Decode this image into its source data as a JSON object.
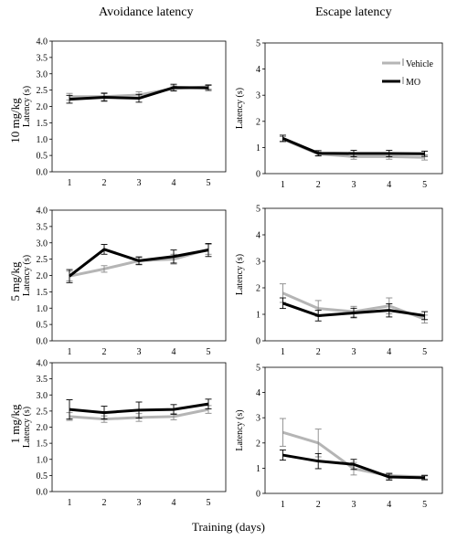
{
  "figure": {
    "col_titles": [
      "Avoidance latency",
      "Escape latency"
    ],
    "row_labels": [
      "10 mg/kg",
      "5 mg/kg",
      "1 mg/kg"
    ],
    "xlabel": "Training (days)"
  },
  "colors": {
    "vehicle": "#b5b5b5",
    "mo": "#000000"
  },
  "chart_data": [
    {
      "type": "line",
      "row": "10 mg/kg",
      "measure": "Avoidance latency",
      "xlabel": "",
      "ylabel": "Latency (s)",
      "x": [
        1,
        2,
        3,
        4,
        5
      ],
      "xlim": [
        0.5,
        5.5
      ],
      "ylim": [
        0,
        4
      ],
      "yticks": [
        0,
        0.5,
        1,
        1.5,
        2,
        2.5,
        3,
        3.5,
        4
      ],
      "ytick_decimals": 1,
      "grid": false,
      "legend": null,
      "series": [
        {
          "name": "Vehicle",
          "color": "#b5b5b5",
          "values": [
            2.3,
            2.3,
            2.35,
            2.55,
            2.6
          ],
          "errors": [
            0.1,
            0.12,
            0.1,
            0.08,
            0.07
          ]
        },
        {
          "name": "MO",
          "color": "#000000",
          "values": [
            2.22,
            2.28,
            2.25,
            2.58,
            2.57
          ],
          "errors": [
            0.12,
            0.12,
            0.12,
            0.1,
            0.08
          ]
        }
      ]
    },
    {
      "type": "line",
      "row": "10 mg/kg",
      "measure": "Escape latency",
      "xlabel": "",
      "ylabel": "Latency (s)",
      "x": [
        1,
        2,
        3,
        4,
        5
      ],
      "xlim": [
        0.5,
        5.5
      ],
      "ylim": [
        0,
        5
      ],
      "yticks": [
        0,
        1,
        2,
        3,
        4,
        5
      ],
      "ytick_decimals": 0,
      "grid": false,
      "legend": "top-right",
      "series": [
        {
          "name": "Vehicle",
          "color": "#b5b5b5",
          "values": [
            1.32,
            0.75,
            0.65,
            0.65,
            0.62
          ],
          "errors": [
            0.1,
            0.08,
            0.1,
            0.1,
            0.1
          ]
        },
        {
          "name": "MO",
          "color": "#000000",
          "values": [
            1.35,
            0.78,
            0.77,
            0.77,
            0.76
          ],
          "errors": [
            0.12,
            0.1,
            0.12,
            0.12,
            0.1
          ]
        }
      ]
    },
    {
      "type": "line",
      "row": "5 mg/kg",
      "measure": "Avoidance latency",
      "xlabel": "",
      "ylabel": "Latency (s)",
      "x": [
        1,
        2,
        3,
        4,
        5
      ],
      "xlim": [
        0.5,
        5.5
      ],
      "ylim": [
        0,
        4
      ],
      "yticks": [
        0,
        0.5,
        1,
        1.5,
        2,
        2.5,
        3,
        3.5,
        4
      ],
      "ytick_decimals": 1,
      "grid": false,
      "legend": null,
      "series": [
        {
          "name": "Vehicle",
          "color": "#b5b5b5",
          "values": [
            1.98,
            2.2,
            2.45,
            2.5,
            2.8
          ],
          "errors": [
            0.15,
            0.1,
            0.1,
            0.15,
            0.15
          ]
        },
        {
          "name": "MO",
          "color": "#000000",
          "values": [
            1.98,
            2.8,
            2.45,
            2.58,
            2.78
          ],
          "errors": [
            0.2,
            0.15,
            0.12,
            0.2,
            0.2
          ]
        }
      ]
    },
    {
      "type": "line",
      "row": "5 mg/kg",
      "measure": "Escape latency",
      "xlabel": "",
      "ylabel": "Latency (s)",
      "x": [
        1,
        2,
        3,
        4,
        5
      ],
      "xlim": [
        0.5,
        5.5
      ],
      "ylim": [
        0,
        5
      ],
      "yticks": [
        0,
        1,
        2,
        3,
        4,
        5
      ],
      "ytick_decimals": 0,
      "grid": false,
      "legend": null,
      "series": [
        {
          "name": "Vehicle",
          "color": "#b5b5b5",
          "values": [
            1.8,
            1.22,
            1.1,
            1.32,
            0.82
          ],
          "errors": [
            0.35,
            0.3,
            0.2,
            0.3,
            0.15
          ]
        },
        {
          "name": "MO",
          "color": "#000000",
          "values": [
            1.42,
            0.95,
            1.05,
            1.15,
            0.95
          ],
          "errors": [
            0.2,
            0.2,
            0.18,
            0.25,
            0.15
          ]
        }
      ]
    },
    {
      "type": "line",
      "row": "1 mg/kg",
      "measure": "Avoidance latency",
      "xlabel": "",
      "ylabel": "Latency (s)",
      "x": [
        1,
        2,
        3,
        4,
        5
      ],
      "xlim": [
        0.5,
        5.5
      ],
      "ylim": [
        0,
        4
      ],
      "yticks": [
        0,
        0.5,
        1,
        1.5,
        2,
        2.5,
        3,
        3.5,
        4
      ],
      "ytick_decimals": 1,
      "grid": false,
      "legend": null,
      "series": [
        {
          "name": "Vehicle",
          "color": "#b5b5b5",
          "values": [
            2.33,
            2.25,
            2.3,
            2.33,
            2.55
          ],
          "errors": [
            0.12,
            0.1,
            0.12,
            0.1,
            0.12
          ]
        },
        {
          "name": "MO",
          "color": "#000000",
          "values": [
            2.55,
            2.45,
            2.53,
            2.55,
            2.72
          ],
          "errors": [
            0.3,
            0.2,
            0.25,
            0.15,
            0.15
          ]
        }
      ]
    },
    {
      "type": "line",
      "row": "1 mg/kg",
      "measure": "Escape latency",
      "xlabel": "",
      "ylabel": "Latency (s)",
      "x": [
        1,
        2,
        3,
        4,
        5
      ],
      "xlim": [
        0.5,
        5.5
      ],
      "ylim": [
        0,
        5
      ],
      "yticks": [
        0,
        1,
        2,
        3,
        4,
        5
      ],
      "ytick_decimals": 0,
      "grid": false,
      "legend": null,
      "series": [
        {
          "name": "Vehicle",
          "color": "#b5b5b5",
          "values": [
            2.42,
            2.0,
            0.98,
            0.7,
            0.65
          ],
          "errors": [
            0.55,
            0.55,
            0.25,
            0.12,
            0.08
          ]
        },
        {
          "name": "MO",
          "color": "#000000",
          "values": [
            1.52,
            1.28,
            1.15,
            0.65,
            0.62
          ],
          "errors": [
            0.2,
            0.3,
            0.2,
            0.12,
            0.08
          ]
        }
      ]
    }
  ]
}
